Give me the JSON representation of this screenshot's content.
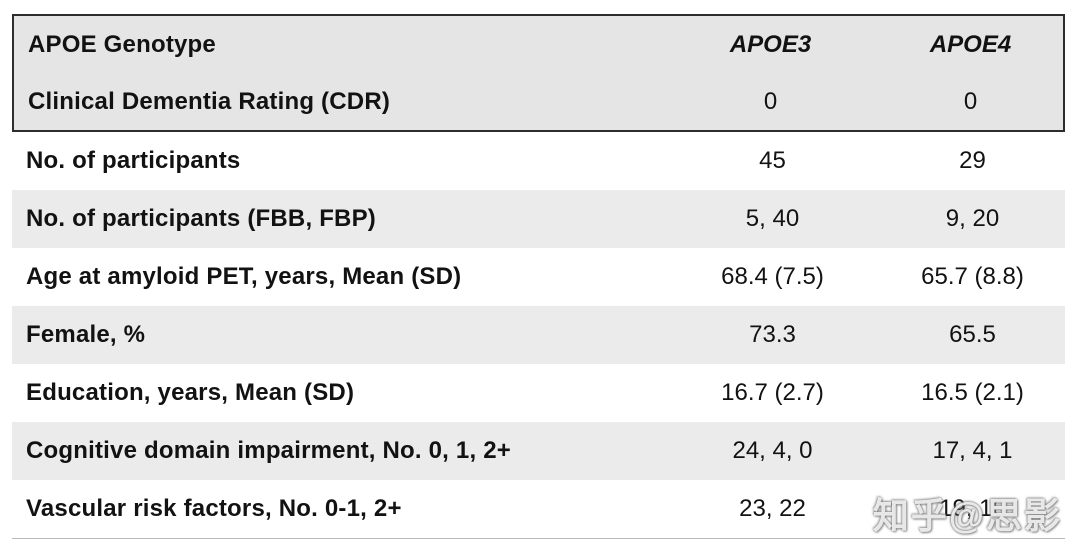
{
  "table": {
    "header": {
      "col1": "APOE Genotype",
      "col2": "APOE3",
      "col3": "APOE4"
    },
    "subheader": {
      "label": "Clinical Dementia Rating (CDR)",
      "apoe3": "0",
      "apoe4": "0"
    },
    "rows": [
      {
        "label": "No. of participants",
        "apoe3": "45",
        "apoe4": "29"
      },
      {
        "label": "No. of participants (FBB, FBP)",
        "apoe3": "5, 40",
        "apoe4": "9, 20"
      },
      {
        "label": "Age at amyloid PET, years, Mean (SD)",
        "apoe3": "68.4 (7.5)",
        "apoe4": "65.7 (8.8)"
      },
      {
        "label": "Female, %",
        "apoe3": "73.3",
        "apoe4": "65.5"
      },
      {
        "label": "Education, years, Mean (SD)",
        "apoe3": "16.7 (2.7)",
        "apoe4": "16.5 (2.1)"
      },
      {
        "label": "Cognitive domain impairment, No. 0, 1, 2+",
        "apoe3": "24, 4, 0",
        "apoe4": "17, 4, 1"
      },
      {
        "label": "Vascular risk factors, No. 0-1, 2+",
        "apoe3": "23, 22",
        "apoe4": "19, 10"
      }
    ]
  },
  "watermark": {
    "text": "知乎@思影"
  }
}
